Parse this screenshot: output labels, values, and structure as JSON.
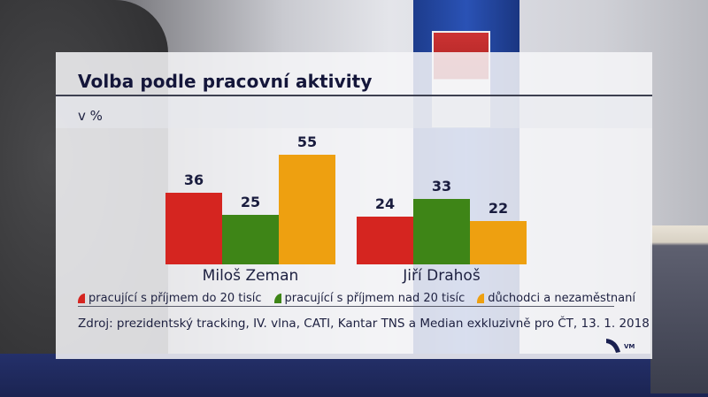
{
  "graphic": {
    "title": "Volba podle pracovní aktivity",
    "unit_label": "v %",
    "source": "Zdroj: prezidentský tracking, IV. vlna, CATI, Kantar TNS a Median exkluzivně pro ČT, 13. 1. 2018",
    "logo_text": "VM"
  },
  "legend": [
    {
      "label": "pracující s příjmem do 20 tisíc",
      "color": "#d52520"
    },
    {
      "label": "pracující s příjmem nad 20 tisíc",
      "color": "#3e8517"
    },
    {
      "label": "důchodci a nezaměstnaní",
      "color": "#eea010"
    }
  ],
  "candidates": [
    {
      "name": "Miloš Zeman",
      "values": [
        "36",
        "25",
        "55"
      ]
    },
    {
      "name": "Jiří Drahoš",
      "values": [
        "24",
        "33",
        "22"
      ]
    }
  ],
  "chart_data": {
    "type": "bar",
    "title": "Volba podle pracovní aktivity",
    "subtitle": "v %",
    "categories": [
      "Miloš Zeman",
      "Jiří Drahoš"
    ],
    "series": [
      {
        "name": "pracující s příjmem do 20 tisíc",
        "color": "#d52520",
        "values": [
          36,
          24
        ]
      },
      {
        "name": "pracující s příjmem nad 20 tisíc",
        "color": "#3e8517",
        "values": [
          25,
          33
        ]
      },
      {
        "name": "důchodci a nezaměstnaní",
        "color": "#eea010",
        "values": [
          55,
          22
        ]
      }
    ],
    "xlabel": "",
    "ylabel": "v %",
    "ylim": [
      0,
      60
    ],
    "grid": false,
    "legend_position": "bottom",
    "data_labels": true,
    "annotations": [
      "Zdroj: prezidentský tracking, IV. vlna, CATI, Kantar TNS a Median exkluzivně pro ČT, 13. 1. 2018"
    ]
  }
}
